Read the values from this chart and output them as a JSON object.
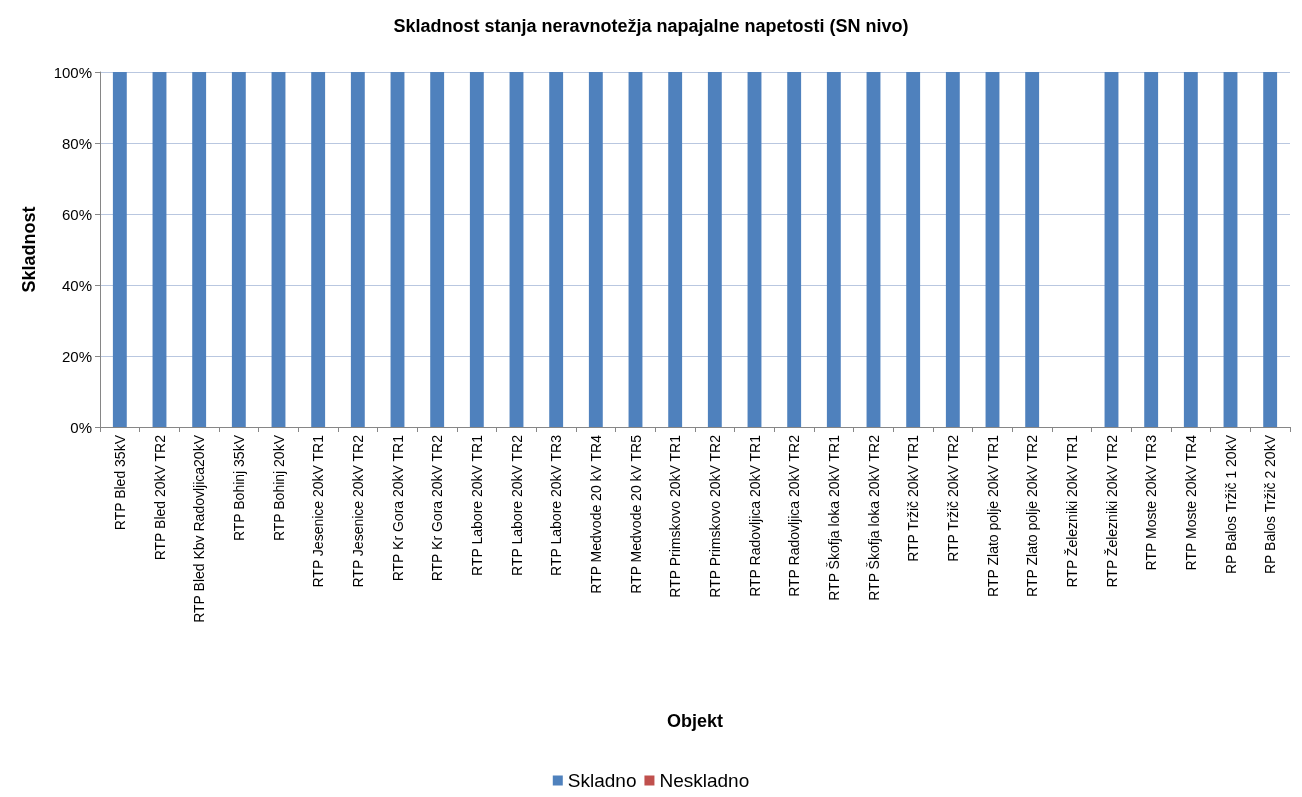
{
  "chart_data": {
    "type": "bar",
    "title": "Skladnost stanja neravnotežja napajalne napetosti (SN nivo)",
    "xlabel": "Objekt",
    "ylabel": "Skladnost",
    "categories": [
      "RTP Bled 35kV",
      "RTP Bled 20kV TR2",
      "RTP Bled Kbv Radovljica20kV",
      "RTP Bohinj 35kV",
      "RTP Bohinj 20kV",
      "RTP Jesenice 20kV TR1",
      "RTP Jesenice 20kV TR2",
      "RTP Kr Gora 20kV TR1",
      "RTP Kr Gora 20kV TR2",
      "RTP Labore 20kV TR1",
      "RTP Labore 20kV TR2",
      "RTP Labore 20kV TR3",
      "RTP Medvode 20 kV TR4",
      "RTP Medvode 20 kV TR5",
      "RTP Primskovo 20kV TR1",
      "RTP Primskovo 20kV TR2",
      "RTP Radovljica 20kV TR1",
      "RTP Radovljica 20kV TR2",
      "RTP Škofja loka 20kV TR1",
      "RTP Škofja loka 20kV TR2",
      "RTP Tržič 20kV TR1",
      "RTP Tržič 20kV TR2",
      "RTP Zlato polje 20kV TR1",
      "RTP Zlato polje 20kV TR2",
      "RTP Železniki 20kV TR1",
      "RTP Železniki 20kV TR2",
      "RTP Moste 20kV TR3",
      "RTP Moste 20kV TR4",
      "RP Balos Tržič 1 20kV",
      "RP Balos Tržič 2 20kV"
    ],
    "series": [
      {
        "name": "Skladno",
        "color": "#4f81bd",
        "values": [
          100,
          100,
          100,
          100,
          100,
          100,
          100,
          100,
          100,
          100,
          100,
          100,
          100,
          100,
          100,
          100,
          100,
          100,
          100,
          100,
          100,
          100,
          100,
          100,
          null,
          100,
          100,
          100,
          100,
          100
        ]
      },
      {
        "name": "Neskladno",
        "color": "#c0504d",
        "values": [
          0,
          0,
          0,
          0,
          0,
          0,
          0,
          0,
          0,
          0,
          0,
          0,
          0,
          0,
          0,
          0,
          0,
          0,
          0,
          0,
          0,
          0,
          0,
          0,
          null,
          0,
          0,
          0,
          0,
          0
        ]
      }
    ],
    "stacked": true,
    "ylim": [
      0,
      100
    ],
    "yticks": [
      {
        "value": 0,
        "label": "0%"
      },
      {
        "value": 20,
        "label": "20%"
      },
      {
        "value": 40,
        "label": "40%"
      },
      {
        "value": 60,
        "label": "60%"
      },
      {
        "value": 80,
        "label": "80%"
      },
      {
        "value": 100,
        "label": "100%"
      }
    ],
    "grid": "y",
    "legend": "bottom"
  }
}
